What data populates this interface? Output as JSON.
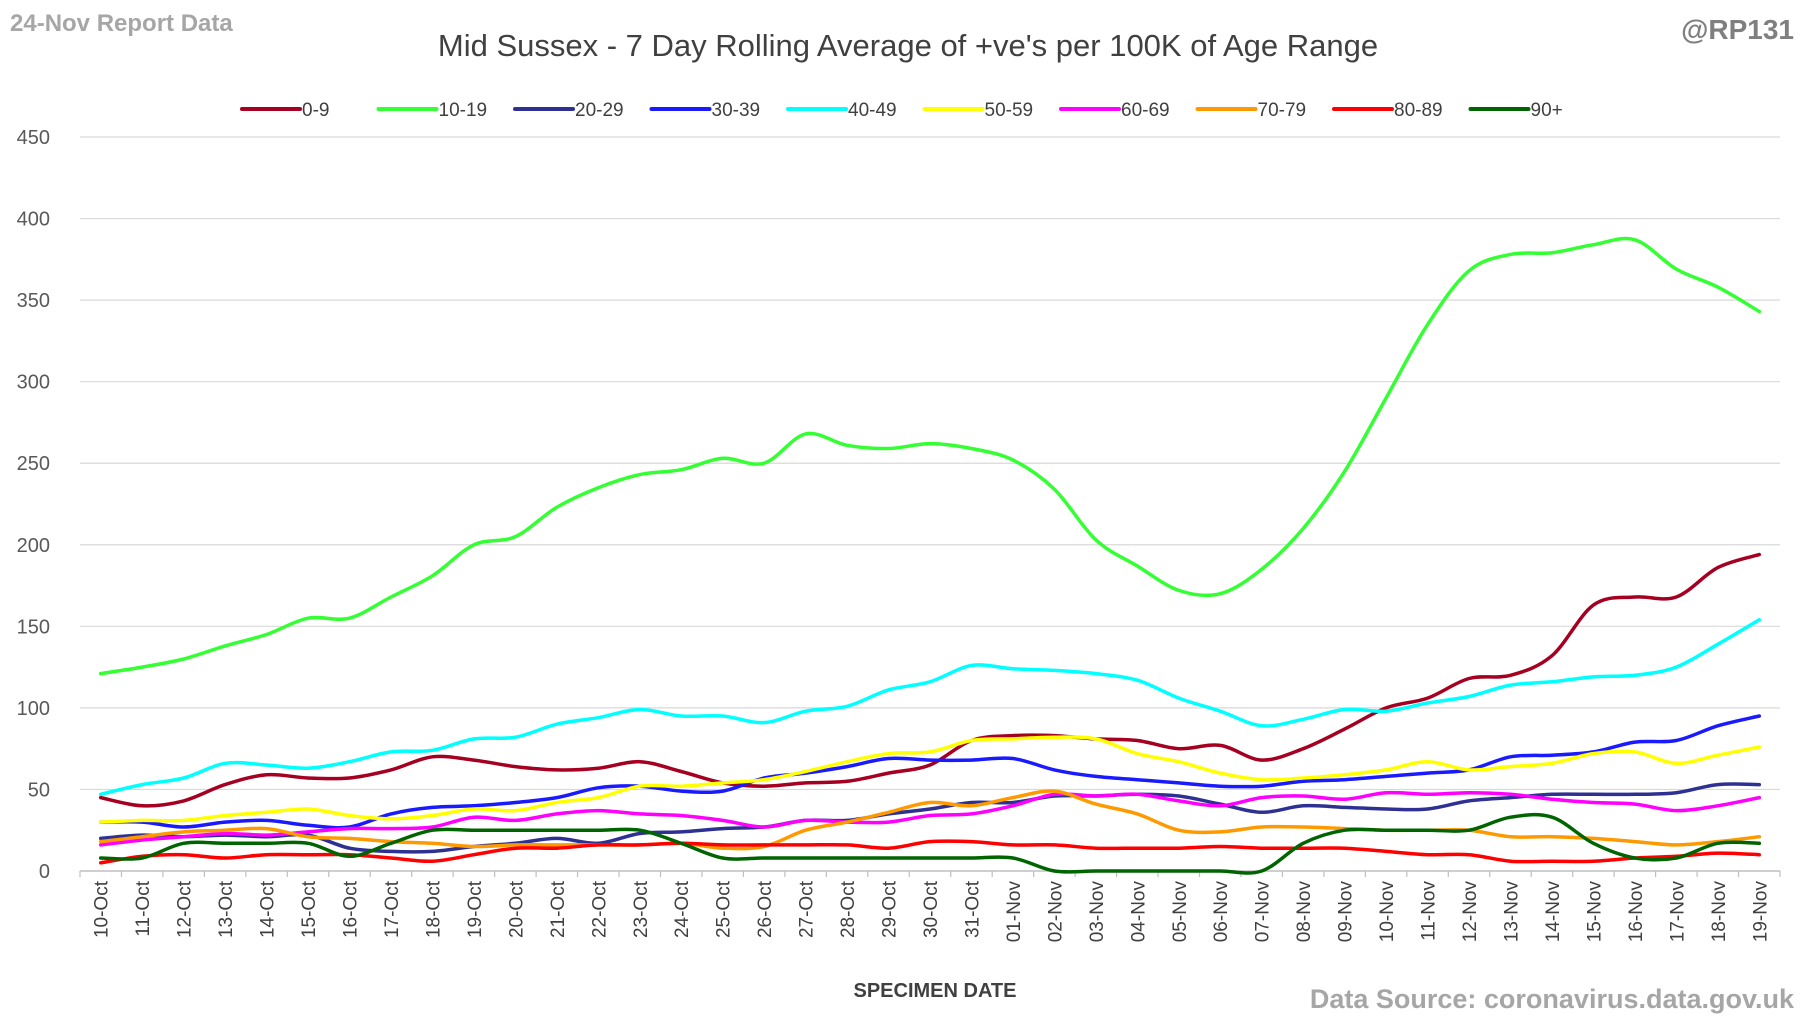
{
  "header": {
    "report_date": "24-Nov Report Data",
    "handle": "@RP131",
    "source": "Data Source: coronavirus.data.gov.uk"
  },
  "chart_data": {
    "type": "line",
    "title": "Mid Sussex - 7 Day Rolling Average of +ve's per 100K of Age Range",
    "xlabel": "SPECIMEN DATE",
    "ylabel": "",
    "ylim": [
      0,
      450
    ],
    "yticks": [
      0,
      50,
      100,
      150,
      200,
      250,
      300,
      350,
      400,
      450
    ],
    "grid": true,
    "legend_position": "top",
    "x": [
      "10-Oct",
      "11-Oct",
      "12-Oct",
      "13-Oct",
      "14-Oct",
      "15-Oct",
      "16-Oct",
      "17-Oct",
      "18-Oct",
      "19-Oct",
      "20-Oct",
      "21-Oct",
      "22-Oct",
      "23-Oct",
      "24-Oct",
      "25-Oct",
      "26-Oct",
      "27-Oct",
      "28-Oct",
      "29-Oct",
      "30-Oct",
      "31-Oct",
      "01-Nov",
      "02-Nov",
      "03-Nov",
      "04-Nov",
      "05-Nov",
      "06-Nov",
      "07-Nov",
      "08-Nov",
      "09-Nov",
      "10-Nov",
      "11-Nov",
      "12-Nov",
      "13-Nov",
      "14-Nov",
      "15-Nov",
      "16-Nov",
      "17-Nov",
      "18-Nov",
      "19-Nov"
    ],
    "series": [
      {
        "name": "0-9",
        "color": "#a50021",
        "values": [
          45,
          40,
          43,
          53,
          59,
          57,
          57,
          62,
          70,
          68,
          64,
          62,
          63,
          67,
          61,
          54,
          52,
          54,
          55,
          60,
          65,
          80,
          83,
          83,
          81,
          80,
          75,
          77,
          68,
          75,
          87,
          100,
          106,
          118,
          120,
          132,
          163,
          168,
          168,
          186,
          194
        ]
      },
      {
        "name": "10-19",
        "color": "#33ff33",
        "values": [
          121,
          125,
          130,
          138,
          145,
          155,
          155,
          168,
          181,
          200,
          205,
          223,
          235,
          243,
          246,
          253,
          250,
          268,
          261,
          259,
          262,
          259,
          252,
          234,
          203,
          187,
          172,
          170,
          185,
          210,
          245,
          290,
          335,
          368,
          378,
          379,
          384,
          387,
          369,
          358,
          343
        ]
      },
      {
        "name": "20-29",
        "color": "#2e3192",
        "values": [
          20,
          22,
          21,
          22,
          21,
          22,
          14,
          12,
          12,
          15,
          17,
          20,
          17,
          23,
          24,
          26,
          27,
          31,
          31,
          35,
          38,
          42,
          42,
          46,
          46,
          47,
          46,
          41,
          36,
          40,
          39,
          38,
          38,
          43,
          45,
          47,
          47,
          47,
          48,
          53,
          53
        ]
      },
      {
        "name": "30-39",
        "color": "#1a1aff",
        "values": [
          30,
          30,
          27,
          30,
          31,
          28,
          27,
          35,
          39,
          40,
          42,
          45,
          51,
          52,
          49,
          49,
          57,
          60,
          64,
          69,
          68,
          68,
          69,
          62,
          58,
          56,
          54,
          52,
          52,
          55,
          56,
          58,
          60,
          62,
          70,
          71,
          73,
          79,
          80,
          89,
          95
        ]
      },
      {
        "name": "40-49",
        "color": "#00ffff",
        "values": [
          47,
          53,
          57,
          66,
          65,
          63,
          67,
          73,
          74,
          81,
          82,
          90,
          94,
          99,
          95,
          95,
          91,
          98,
          101,
          111,
          116,
          126,
          124,
          123,
          121,
          117,
          106,
          98,
          89,
          93,
          99,
          98,
          103,
          107,
          114,
          116,
          119,
          120,
          125,
          139,
          154
        ]
      },
      {
        "name": "50-59",
        "color": "#ffff00",
        "values": [
          30,
          31,
          31,
          34,
          36,
          38,
          34,
          32,
          34,
          38,
          37,
          42,
          45,
          52,
          52,
          54,
          56,
          61,
          67,
          72,
          73,
          80,
          81,
          82,
          81,
          72,
          67,
          60,
          56,
          57,
          59,
          62,
          67,
          62,
          64,
          66,
          72,
          73,
          66,
          71,
          76
        ]
      },
      {
        "name": "60-69",
        "color": "#ff00ff",
        "values": [
          16,
          19,
          21,
          23,
          22,
          24,
          26,
          26,
          27,
          33,
          31,
          35,
          37,
          35,
          34,
          31,
          27,
          31,
          30,
          30,
          34,
          35,
          40,
          47,
          46,
          47,
          43,
          40,
          45,
          46,
          44,
          48,
          47,
          48,
          47,
          44,
          42,
          41,
          37,
          40,
          45
        ]
      },
      {
        "name": "70-79",
        "color": "#ff9900",
        "values": [
          18,
          21,
          24,
          25,
          26,
          21,
          20,
          18,
          17,
          15,
          16,
          16,
          16,
          16,
          17,
          14,
          15,
          25,
          30,
          36,
          42,
          40,
          45,
          49,
          41,
          35,
          25,
          24,
          27,
          27,
          26,
          25,
          25,
          25,
          21,
          21,
          20,
          18,
          16,
          18,
          21
        ]
      },
      {
        "name": "80-89",
        "color": "#ff0000",
        "values": [
          5,
          9,
          10,
          8,
          10,
          10,
          10,
          8,
          6,
          10,
          14,
          14,
          16,
          16,
          17,
          16,
          16,
          16,
          16,
          14,
          18,
          18,
          16,
          16,
          14,
          14,
          14,
          15,
          14,
          14,
          14,
          12,
          10,
          10,
          6,
          6,
          6,
          8,
          9,
          11,
          10
        ]
      },
      {
        "name": "90+",
        "color": "#006400",
        "values": [
          8,
          8,
          17,
          17,
          17,
          17,
          9,
          17,
          25,
          25,
          25,
          25,
          25,
          25,
          17,
          8,
          8,
          8,
          8,
          8,
          8,
          8,
          8,
          0,
          0,
          0,
          0,
          0,
          0,
          17,
          25,
          25,
          25,
          25,
          33,
          33,
          17,
          8,
          8,
          17,
          17
        ]
      }
    ]
  }
}
